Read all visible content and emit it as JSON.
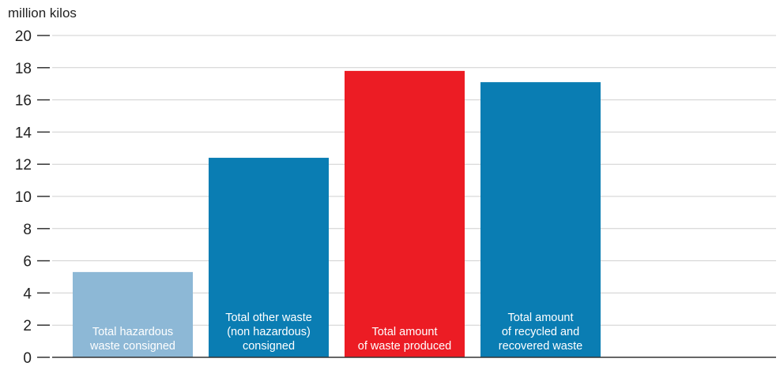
{
  "chart_data": {
    "type": "bar",
    "ylabel": "million kilos",
    "ylim": [
      0,
      20
    ],
    "yticks": [
      0,
      2,
      4,
      6,
      8,
      10,
      12,
      14,
      16,
      18,
      20
    ],
    "grid": true,
    "categories": [
      [
        "Total hazardous",
        "waste consigned"
      ],
      [
        "Total other waste",
        "(non hazardous)",
        "consigned"
      ],
      [
        "Total amount",
        "of waste produced"
      ],
      [
        "Total amount",
        "of recycled and",
        "recovered waste"
      ]
    ],
    "values": [
      5.3,
      12.4,
      17.8,
      17.1
    ],
    "colors": [
      "#8db8d6",
      "#0a7db3",
      "#ec1c24",
      "#0a7db3"
    ]
  }
}
